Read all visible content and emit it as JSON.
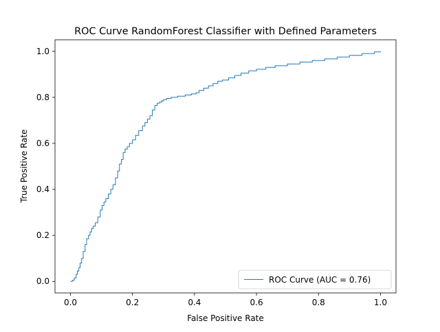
{
  "chart_data": {
    "type": "line",
    "title": "ROC Curve RandomForest Classifier with Defined Parameters",
    "xlabel": "False Positive Rate",
    "ylabel": "True Positive Rate",
    "xlim": [
      -0.05,
      1.05
    ],
    "ylim": [
      -0.05,
      1.05
    ],
    "xticks": [
      0.0,
      0.2,
      0.4,
      0.6,
      0.8,
      1.0
    ],
    "xtick_labels": [
      "0.0",
      "0.2",
      "0.4",
      "0.6",
      "0.8",
      "1.0"
    ],
    "yticks": [
      0.0,
      0.2,
      0.4,
      0.6,
      0.8,
      1.0
    ],
    "ytick_labels": [
      "0.0",
      "0.2",
      "0.4",
      "0.6",
      "0.8",
      "1.0"
    ],
    "grid": false,
    "legend_position": "lower-right",
    "series": [
      {
        "name": "ROC Curve (AUC = 0.76)",
        "color": "#1f77b4",
        "style": "step",
        "x": [
          0.0,
          0.006,
          0.012,
          0.018,
          0.022,
          0.027,
          0.031,
          0.036,
          0.041,
          0.047,
          0.052,
          0.058,
          0.063,
          0.068,
          0.073,
          0.08,
          0.088,
          0.096,
          0.102,
          0.108,
          0.114,
          0.122,
          0.13,
          0.137,
          0.145,
          0.152,
          0.158,
          0.164,
          0.17,
          0.176,
          0.183,
          0.19,
          0.2,
          0.21,
          0.22,
          0.232,
          0.24,
          0.248,
          0.256,
          0.264,
          0.272,
          0.28,
          0.288,
          0.295,
          0.3,
          0.31,
          0.325,
          0.345,
          0.37,
          0.39,
          0.405,
          0.415,
          0.43,
          0.445,
          0.46,
          0.475,
          0.49,
          0.51,
          0.53,
          0.55,
          0.575,
          0.6,
          0.63,
          0.66,
          0.7,
          0.74,
          0.78,
          0.82,
          0.86,
          0.9,
          0.94,
          0.98,
          1.0
        ],
        "y": [
          0.0,
          0.005,
          0.015,
          0.03,
          0.045,
          0.06,
          0.08,
          0.1,
          0.13,
          0.16,
          0.185,
          0.2,
          0.215,
          0.23,
          0.24,
          0.255,
          0.28,
          0.31,
          0.33,
          0.345,
          0.36,
          0.38,
          0.4,
          0.42,
          0.45,
          0.48,
          0.51,
          0.53,
          0.56,
          0.575,
          0.585,
          0.6,
          0.615,
          0.635,
          0.655,
          0.675,
          0.69,
          0.705,
          0.72,
          0.745,
          0.765,
          0.775,
          0.78,
          0.785,
          0.79,
          0.795,
          0.8,
          0.805,
          0.81,
          0.815,
          0.82,
          0.83,
          0.84,
          0.85,
          0.86,
          0.87,
          0.875,
          0.885,
          0.895,
          0.905,
          0.915,
          0.922,
          0.93,
          0.937,
          0.945,
          0.953,
          0.96,
          0.967,
          0.975,
          0.982,
          0.99,
          0.997,
          1.0
        ]
      }
    ]
  }
}
